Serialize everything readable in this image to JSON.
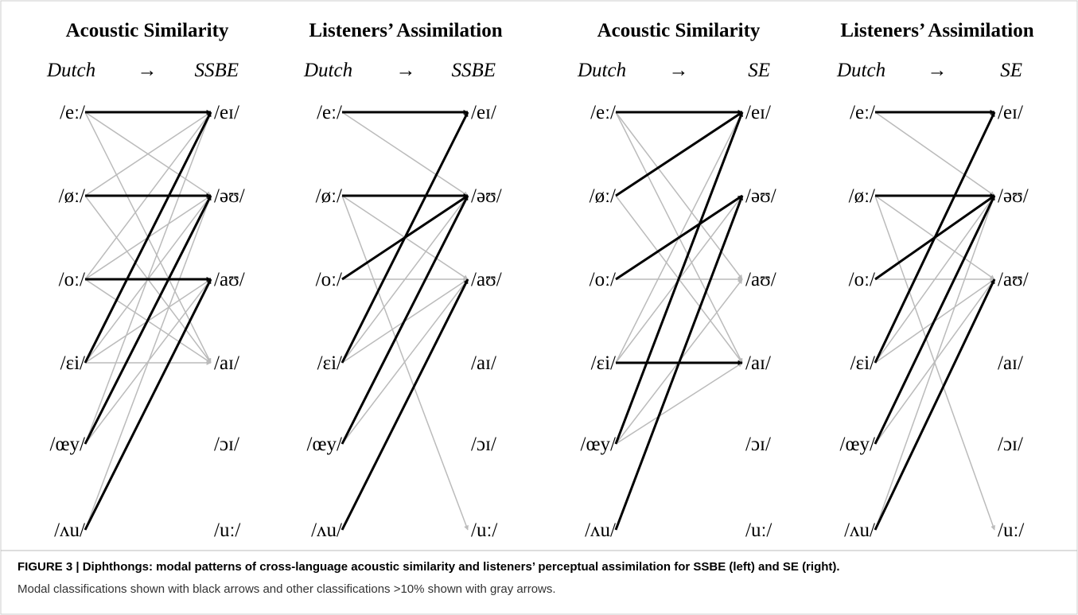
{
  "panels": [
    {
      "title": "Acoustic Similarity",
      "source": "Dutch",
      "arrow": "→",
      "target": "SSBE",
      "source_labels": [
        "/eː/",
        "/øː/",
        "/oː/",
        "/ɛi/",
        "/œy/",
        "/ʌu/"
      ],
      "target_labels": [
        "/eɪ/",
        "/əʊ/",
        "/aʊ/",
        "/aɪ/",
        "/ɔɪ/",
        "/uː/"
      ]
    },
    {
      "title": "Listeners’ Assimilation",
      "source": "Dutch",
      "arrow": "→",
      "target": "SSBE",
      "source_labels": [
        "/eː/",
        "/øː/",
        "/oː/",
        "/ɛi/",
        "/œy/",
        "/ʌu/"
      ],
      "target_labels": [
        "/eɪ/",
        "/əʊ/",
        "/aʊ/",
        "/aɪ/",
        "/ɔɪ/",
        "/uː/"
      ]
    },
    {
      "title": "Acoustic Similarity",
      "source": "Dutch",
      "arrow": "→",
      "target": "SE",
      "source_labels": [
        "/eː/",
        "/øː/",
        "/oː/",
        "/ɛi/",
        "/œy/",
        "/ʌu/"
      ],
      "target_labels": [
        "/eɪ/",
        "/əʊ/",
        "/aʊ/",
        "/aɪ/",
        "/ɔɪ/",
        "/uː/"
      ]
    },
    {
      "title": "Listeners’ Assimilation",
      "source": "Dutch",
      "arrow": "→",
      "target": "SE",
      "source_labels": [
        "/eː/",
        "/øː/",
        "/oː/",
        "/ɛi/",
        "/œy/",
        "/ʌu/"
      ],
      "target_labels": [
        "/eɪ/",
        "/əʊ/",
        "/aʊ/",
        "/aɪ/",
        "/ɔɪ/",
        "/uː/"
      ]
    }
  ],
  "caption": {
    "label": "FIGURE 3 | Diphthongs: modal patterns of cross-language acoustic similarity and listeners’ perceptual assimilation for SSBE (left) and SE (right).",
    "text": "Modal classifications shown with black arrows and other classifications >10% shown with gray arrows."
  }
}
